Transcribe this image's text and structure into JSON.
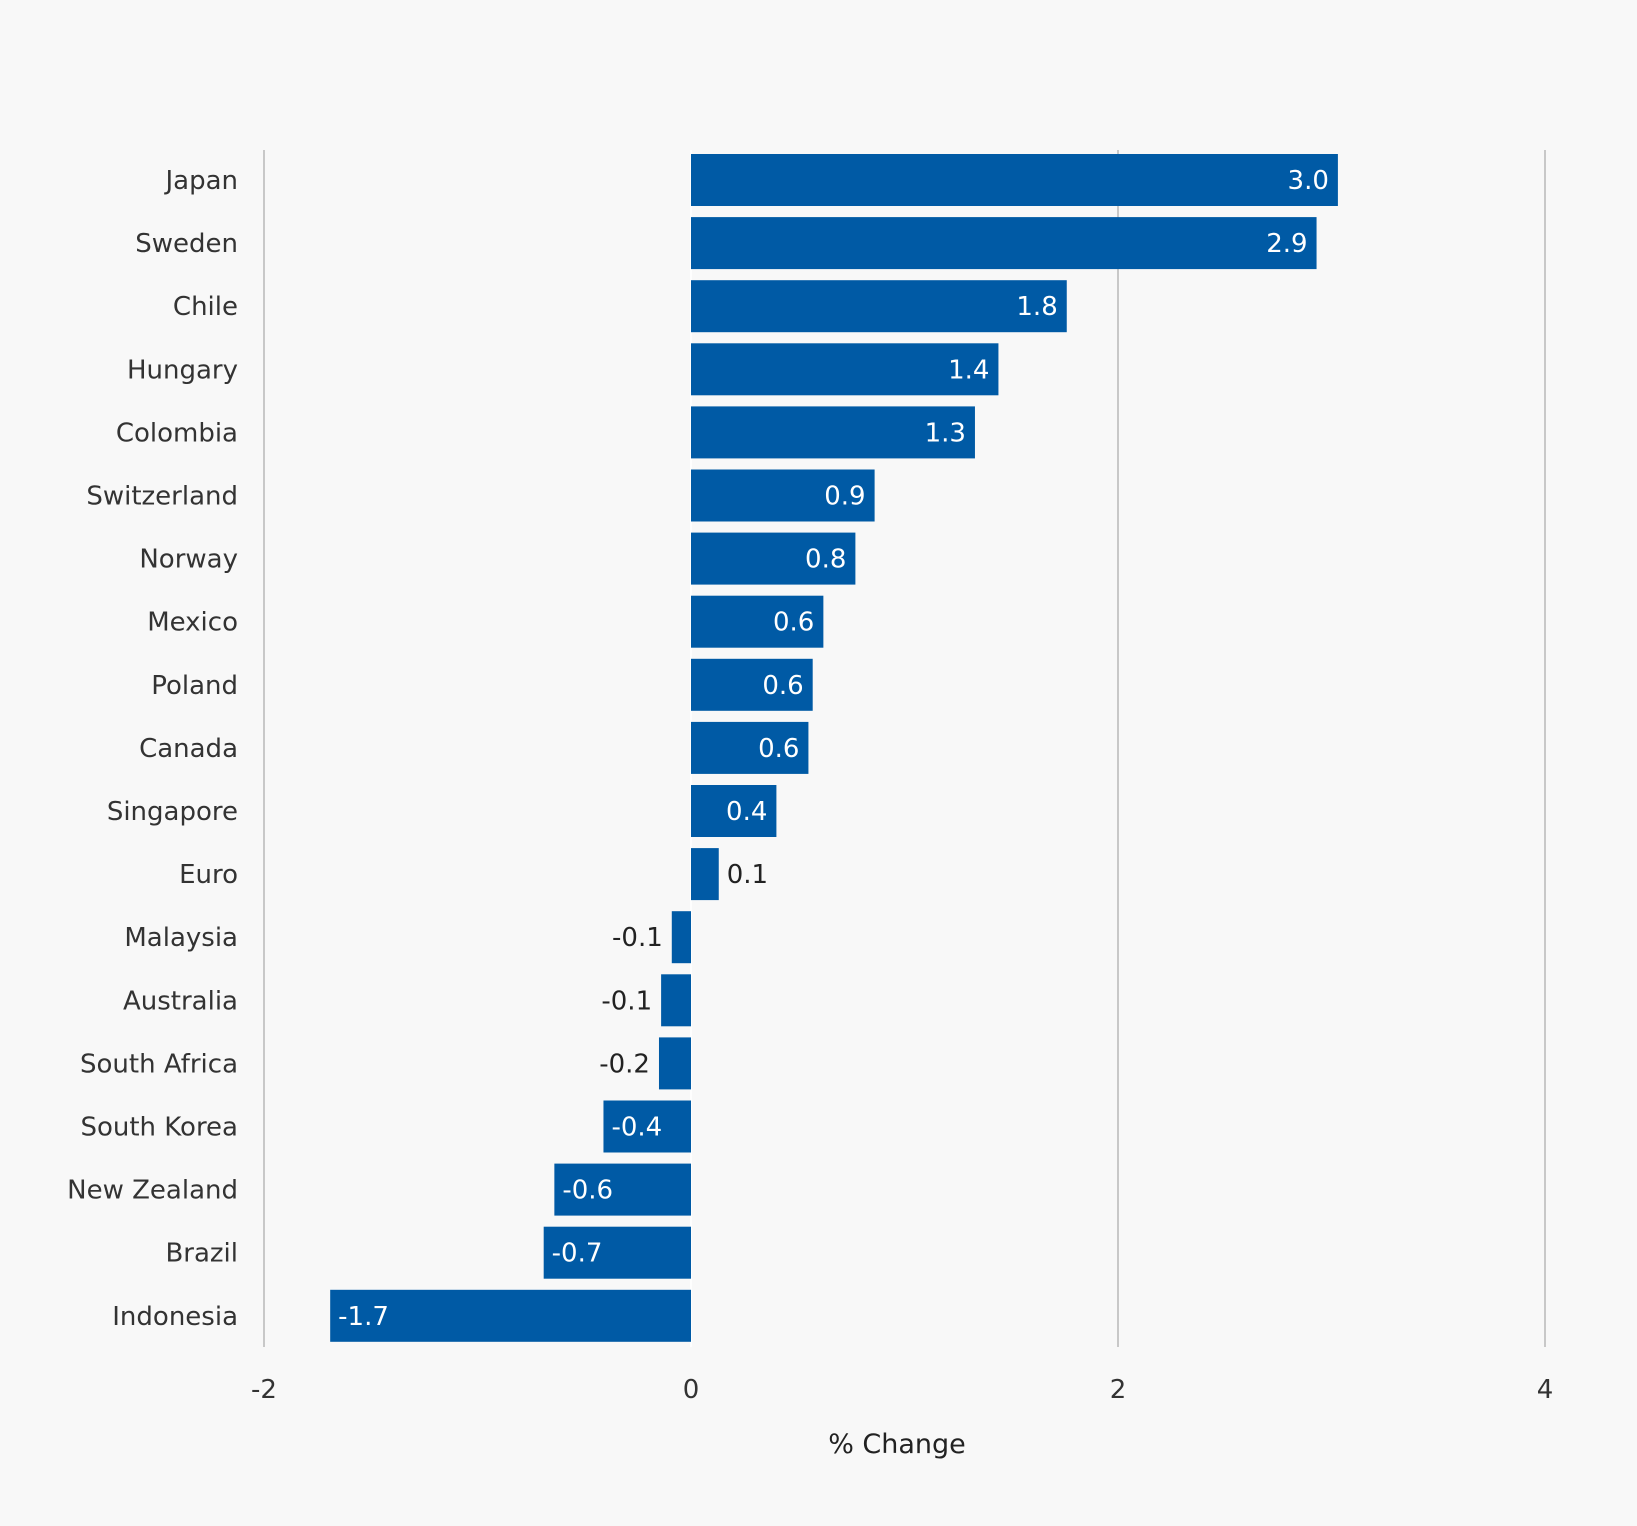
{
  "chart_data": {
    "type": "bar",
    "orientation": "horizontal",
    "categories": [
      "Japan",
      "Sweden",
      "Chile",
      "Hungary",
      "Colombia",
      "Switzerland",
      "Norway",
      "Mexico",
      "Poland",
      "Canada",
      "Singapore",
      "Euro",
      "Malaysia",
      "Australia",
      "South Africa",
      "South Korea",
      "New Zealand",
      "Brazil",
      "Indonesia"
    ],
    "values": [
      3.03,
      2.93,
      1.76,
      1.44,
      1.33,
      0.86,
      0.77,
      0.62,
      0.57,
      0.55,
      0.4,
      0.13,
      -0.09,
      -0.14,
      -0.15,
      -0.41,
      -0.64,
      -0.69,
      -1.69
    ],
    "value_labels": [
      "3.0",
      "2.9",
      "1.8",
      "1.4",
      "1.3",
      "0.9",
      "0.8",
      "0.6",
      "0.6",
      "0.6",
      "0.4",
      "0.1",
      "-0.1",
      "-0.1",
      "-0.2",
      "-0.4",
      "-0.6",
      "-0.7",
      "-1.7"
    ],
    "xlim": [
      -2,
      4
    ],
    "xticks": [
      -2,
      0,
      2,
      4
    ],
    "xtick_labels": [
      "-2",
      "0",
      "2",
      "4"
    ],
    "xlabel": "% Change",
    "ylabel": "",
    "title": "",
    "grid": "vertical",
    "legend": "none",
    "colors": {
      "bar": "#005aa5",
      "label_inside": "#ffffff",
      "label_outside": "#222222",
      "grid": "#999999",
      "background": "#f8f8f8"
    }
  }
}
